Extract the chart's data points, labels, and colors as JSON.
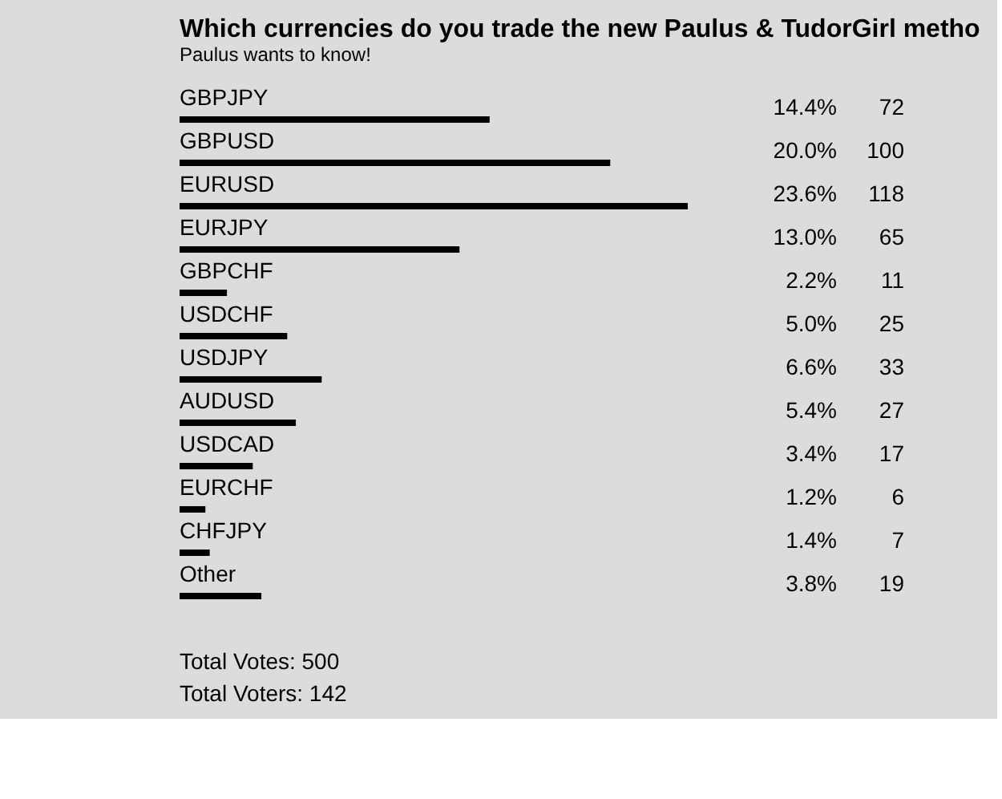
{
  "chart_data": {
    "type": "bar",
    "orientation": "horizontal",
    "title": "Which currencies do you trade the new Paulus & TudorGirl metho",
    "subtitle": "Paulus wants to know!",
    "categories": [
      "GBPJPY",
      "GBPUSD",
      "EURUSD",
      "EURJPY",
      "GBPCHF",
      "USDCHF",
      "USDJPY",
      "AUDUSD",
      "USDCAD",
      "EURCHF",
      "CHFJPY",
      "Other"
    ],
    "values": [
      14.4,
      20.0,
      23.6,
      13.0,
      2.2,
      5.0,
      6.6,
      5.4,
      3.4,
      1.2,
      1.4,
      3.8
    ],
    "value_labels": [
      "14.4%",
      "20.0%",
      "23.6%",
      "13.0%",
      "2.2%",
      "5.0%",
      "6.6%",
      "5.4%",
      "3.4%",
      "1.2%",
      "1.4%",
      "3.8%"
    ],
    "color": "#000000",
    "annotations": [
      "72",
      "100",
      "118",
      "65",
      "11",
      "25",
      "33",
      "27",
      "17",
      "6",
      "7",
      "19",
      "Total Votes: 500",
      "Total Voters: 142"
    ]
  }
}
